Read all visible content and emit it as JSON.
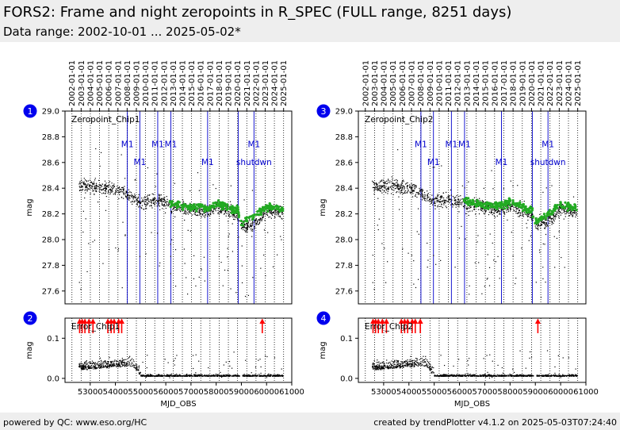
{
  "title": "FORS2: Frame and night zeropoints in R_SPEC (FULL range, 8251 days)",
  "subtitle": "Data range: 2002-10-01 ... 2025-05-02*",
  "footer": {
    "left": "powered by QC: www.eso.org/HC",
    "right": "created by trendPlotter v4.1.2 on 2025-05-03T07:24:40"
  },
  "colors": {
    "data_points": "#000000",
    "night_points": "#22aa22",
    "event_lines": "#0000cc",
    "outlier_arrows": "#ff0000",
    "panel_badge": "#0000ee"
  },
  "top_axis_dates": [
    "2002-01-01",
    "2003-01-01",
    "2004-01-01",
    "2005-01-01",
    "2006-01-01",
    "2007-01-01",
    "2008-01-01",
    "2009-01-01",
    "2010-01-01",
    "2011-01-01",
    "2012-01-01",
    "2013-01-01",
    "2014-01-01",
    "2015-01-01",
    "2016-01-01",
    "2017-01-01",
    "2018-01-01",
    "2019-01-01",
    "2020-01-01",
    "2021-01-01",
    "2022-01-01",
    "2023-01-01",
    "2024-01-01",
    "2025-01-01"
  ],
  "panels": [
    {
      "badge": "1",
      "label": "Zeropoint_Chip1",
      "ylabel": "mag"
    },
    {
      "badge": "2",
      "label": "Error_Chip1",
      "ylabel": "mag"
    },
    {
      "badge": "3",
      "label": "Zeropoint_Chip2",
      "ylabel": "mag"
    },
    {
      "badge": "4",
      "label": "Error_Chip2",
      "ylabel": "mag"
    }
  ],
  "chart_data": [
    {
      "type": "scatter",
      "panel": "1",
      "title": "Zeropoint_Chip1",
      "xlabel": "",
      "ylabel": "mag",
      "xlim": [
        52000,
        61000
      ],
      "ylim": [
        27.5,
        29.0
      ],
      "yticks": [
        27.6,
        27.8,
        28.0,
        28.2,
        28.4,
        28.6,
        28.8,
        29.0
      ],
      "grid": "vertical dotted lines at year starts",
      "events": [
        {
          "mjd": 54475,
          "label": "M1",
          "label_mag": 28.72
        },
        {
          "mjd": 54970,
          "label": "M1",
          "label_mag": 28.58
        },
        {
          "mjd": 55680,
          "label": "M1",
          "label_mag": 28.72
        },
        {
          "mjd": 56200,
          "label": "M1",
          "label_mag": 28.72
        },
        {
          "mjd": 57660,
          "label": "M1",
          "label_mag": 28.58
        },
        {
          "mjd": 58880,
          "label": "",
          "label_mag": 0
        },
        {
          "mjd": 59500,
          "label": "M1",
          "label_mag": 28.72
        },
        {
          "mjd": 59500,
          "label": "shutdwn",
          "label_mag": 28.58
        }
      ],
      "series": [
        {
          "name": "frame zeropoints",
          "style": "black dots",
          "trend": [
            [
              52550,
              28.42
            ],
            [
              53400,
              28.41
            ],
            [
              54300,
              28.37
            ],
            [
              54700,
              28.33
            ],
            [
              55000,
              28.28
            ],
            [
              55600,
              28.31
            ],
            [
              56200,
              28.27
            ],
            [
              57000,
              28.23
            ],
            [
              57660,
              28.22
            ],
            [
              58000,
              28.25
            ],
            [
              58880,
              28.2
            ],
            [
              59000,
              28.1
            ],
            [
              59500,
              28.12
            ],
            [
              60000,
              28.22
            ],
            [
              60650,
              28.22
            ]
          ],
          "scatter": 0.05,
          "low_outliers_to": 27.55
        },
        {
          "name": "night zeropoints",
          "style": "green dots",
          "trend": [
            [
              56150,
              28.28
            ],
            [
              57000,
              28.25
            ],
            [
              57660,
              28.25
            ],
            [
              58000,
              28.28
            ],
            [
              58880,
              28.22
            ],
            [
              59000,
              28.12
            ],
            [
              59500,
              28.18
            ],
            [
              60000,
              28.26
            ],
            [
              60650,
              28.24
            ]
          ],
          "scatter": 0.03
        }
      ]
    },
    {
      "type": "scatter",
      "panel": "2",
      "title": "Error_Chip1",
      "xlabel": "MJD_OBS",
      "ylabel": "mag",
      "xlim": [
        52000,
        61000
      ],
      "ylim": [
        -0.01,
        0.15
      ],
      "xticks": [
        53000,
        54000,
        55000,
        56000,
        57000,
        58000,
        59000,
        60000,
        61000
      ],
      "yticks": [
        0.0,
        0.1
      ],
      "outlier_arrows_mjd": [
        52580,
        52680,
        52790,
        52950,
        53110,
        53700,
        53830,
        53950,
        54130,
        54250,
        59830
      ],
      "series": [
        {
          "name": "error",
          "style": "black dots",
          "levels": [
            [
              52550,
              0.02
            ],
            [
              54400,
              0.03
            ],
            [
              54700,
              0.03
            ],
            [
              55000,
              0.005
            ],
            [
              58900,
              0.005
            ],
            [
              59050,
              0.005
            ],
            [
              60650,
              0.005
            ]
          ],
          "scatter": 0.02
        }
      ]
    },
    {
      "type": "scatter",
      "panel": "3",
      "title": "Zeropoint_Chip2",
      "xlabel": "",
      "ylabel": "mag",
      "xlim": [
        52000,
        61000
      ],
      "ylim": [
        27.5,
        29.0
      ],
      "yticks": [
        27.6,
        27.8,
        28.0,
        28.2,
        28.4,
        28.6,
        28.8,
        29.0
      ],
      "grid": "vertical dotted lines at year starts",
      "events": [
        {
          "mjd": 54475,
          "label": "M1",
          "label_mag": 28.72
        },
        {
          "mjd": 54970,
          "label": "M1",
          "label_mag": 28.58
        },
        {
          "mjd": 55680,
          "label": "M1",
          "label_mag": 28.72
        },
        {
          "mjd": 56200,
          "label": "M1",
          "label_mag": 28.72
        },
        {
          "mjd": 57660,
          "label": "M1",
          "label_mag": 28.58
        },
        {
          "mjd": 58880,
          "label": "",
          "label_mag": 0
        },
        {
          "mjd": 59500,
          "label": "M1",
          "label_mag": 28.72
        },
        {
          "mjd": 59500,
          "label": "shutdwn",
          "label_mag": 28.58
        }
      ],
      "series": [
        {
          "name": "frame zeropoints",
          "style": "black dots",
          "trend": [
            [
              52550,
              28.41
            ],
            [
              53400,
              28.42
            ],
            [
              54300,
              28.38
            ],
            [
              54700,
              28.33
            ],
            [
              55000,
              28.3
            ],
            [
              55600,
              28.32
            ],
            [
              56200,
              28.28
            ],
            [
              57000,
              28.25
            ],
            [
              57660,
              28.23
            ],
            [
              58000,
              28.26
            ],
            [
              58880,
              28.2
            ],
            [
              59000,
              28.12
            ],
            [
              59500,
              28.14
            ],
            [
              60000,
              28.24
            ],
            [
              60650,
              28.22
            ]
          ],
          "scatter": 0.05,
          "low_outliers_to": 27.55
        },
        {
          "name": "night zeropoints",
          "style": "green dots",
          "trend": [
            [
              56150,
              28.3
            ],
            [
              57000,
              28.27
            ],
            [
              57660,
              28.26
            ],
            [
              58000,
              28.3
            ],
            [
              58880,
              28.22
            ],
            [
              59000,
              28.13
            ],
            [
              59500,
              28.2
            ],
            [
              60000,
              28.27
            ],
            [
              60650,
              28.25
            ]
          ],
          "scatter": 0.03
        }
      ]
    },
    {
      "type": "scatter",
      "panel": "4",
      "title": "Error_Chip2",
      "xlabel": "MJD_OBS",
      "ylabel": "mag",
      "xlim": [
        52000,
        61000
      ],
      "ylim": [
        -0.01,
        0.15
      ],
      "xticks": [
        53000,
        54000,
        55000,
        56000,
        57000,
        58000,
        59000,
        60000,
        61000
      ],
      "yticks": [
        0.0,
        0.1
      ],
      "outlier_arrows_mjd": [
        52580,
        52680,
        52790,
        52950,
        53110,
        53700,
        53830,
        53950,
        54130,
        54250,
        54450,
        59100
      ],
      "series": [
        {
          "name": "error",
          "style": "black dots",
          "levels": [
            [
              52550,
              0.02
            ],
            [
              54400,
              0.03
            ],
            [
              54700,
              0.03
            ],
            [
              55000,
              0.005
            ],
            [
              58900,
              0.005
            ],
            [
              59050,
              0.005
            ],
            [
              60650,
              0.005
            ]
          ],
          "scatter": 0.02
        }
      ]
    }
  ]
}
